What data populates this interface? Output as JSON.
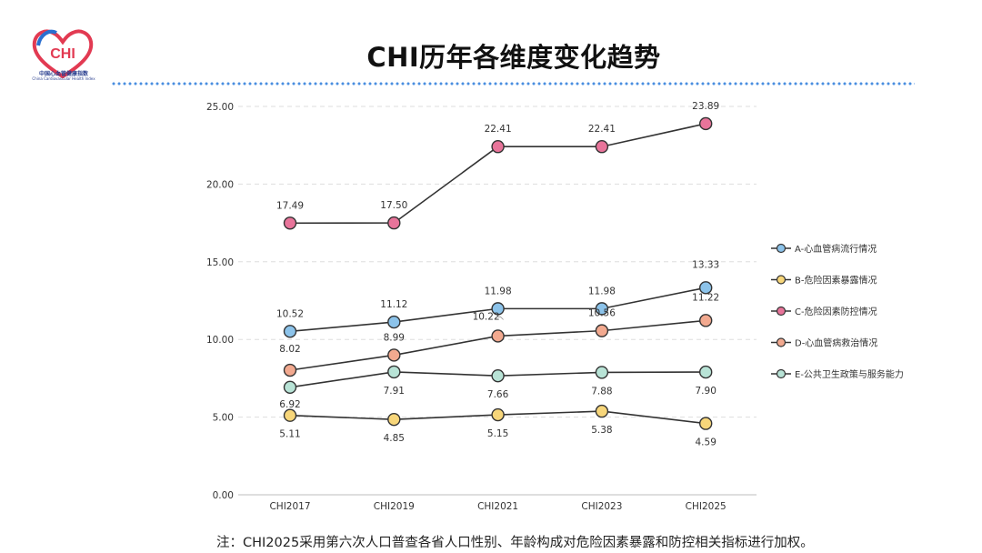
{
  "logo": {
    "mark_text": "CHI",
    "cn_text": "中国心血管健康指数",
    "en_text": "China Cardiovascular Health Index"
  },
  "title": "CHI历年各维度变化趋势",
  "note": "注：CHI2025采用第六次人口普查各省人口性别、年龄构成对危险因素暴露和防控相关指标进行加权。",
  "chart_data": {
    "type": "line",
    "categories": [
      "CHI2017",
      "CHI2019",
      "CHI2021",
      "CHI2023",
      "CHI2025"
    ],
    "ylim": [
      0,
      25
    ],
    "yticks": [
      "0.00",
      "5.00",
      "10.00",
      "15.00",
      "20.00",
      "25.00"
    ],
    "grid": true,
    "legend_position": "right",
    "series": [
      {
        "name": "A-心血管病流行情况",
        "color": "#8cc3ea",
        "values": [
          10.52,
          11.12,
          11.98,
          11.98,
          13.33
        ],
        "labels": [
          "10.52",
          "11.12",
          "11.98",
          "11.98",
          "13.33"
        ]
      },
      {
        "name": "B-危险因素暴露情况",
        "color": "#f7d67a",
        "values": [
          5.11,
          4.85,
          5.15,
          5.38,
          4.59
        ],
        "labels": [
          "5.11",
          "4.85",
          "5.15",
          "5.38",
          "4.59"
        ]
      },
      {
        "name": "C-危险因素防控情况",
        "color": "#e8749a",
        "values": [
          17.49,
          17.5,
          22.41,
          22.41,
          23.89
        ],
        "labels": [
          "17.49",
          "17.50",
          "22.41",
          "22.41",
          "23.89"
        ]
      },
      {
        "name": "D-心血管病救治情况",
        "color": "#f2a98f",
        "values": [
          8.02,
          8.99,
          10.22,
          10.56,
          11.22
        ],
        "labels": [
          "8.02",
          "8.99",
          "10.22",
          "10.56",
          "11.22"
        ]
      },
      {
        "name": "E-公共卫生政策与服务能力",
        "color": "#b8e3d6",
        "values": [
          6.92,
          7.91,
          7.66,
          7.88,
          7.9
        ],
        "labels": [
          "6.92",
          "7.91",
          "7.66",
          "7.88",
          "7.90"
        ]
      }
    ]
  }
}
